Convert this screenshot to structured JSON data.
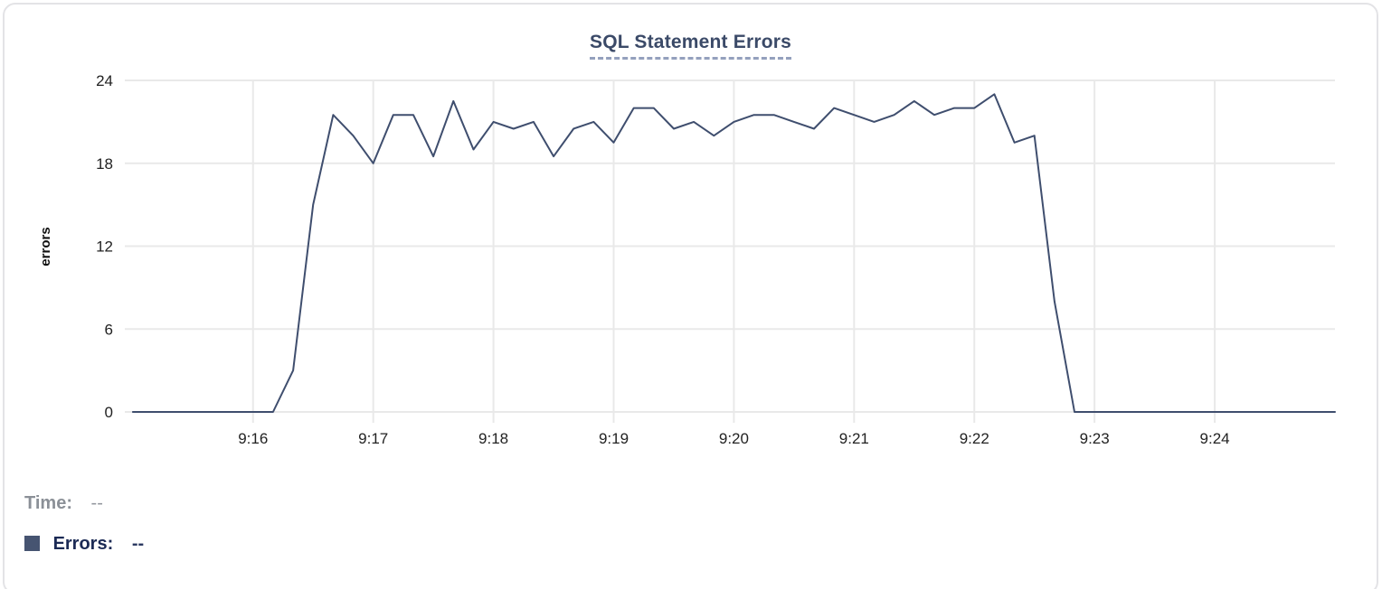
{
  "card": {
    "title": "SQL Statement Errors"
  },
  "legend": {
    "time_label": "Time:",
    "time_value": "--",
    "errors_label": "Errors:",
    "errors_value": "--",
    "swatch_color": "#465471"
  },
  "colors": {
    "line": "#3f4e6e",
    "grid": "#e9e9e9",
    "title": "#3b4a68",
    "title_underline": "#94a0bd",
    "tick_text": "#222222",
    "axis_label": "#111111",
    "legend_time": "#8b9097",
    "legend_errors": "#1b2a55",
    "card_border": "#e3e3e6",
    "background": "#ffffff"
  },
  "chart_data": {
    "type": "line",
    "title": "SQL Statement Errors",
    "xlabel": "",
    "ylabel": "errors",
    "ylim": [
      0,
      24
    ],
    "y_ticks": [
      0,
      6,
      12,
      18,
      24
    ],
    "x_ticks": [
      "9:16",
      "9:17",
      "9:18",
      "9:19",
      "9:20",
      "9:21",
      "9:22",
      "9:23",
      "9:24"
    ],
    "x_range": [
      "9:14:56",
      "9:25:00"
    ],
    "sample_interval_seconds": 10,
    "grid": true,
    "legend_position": "bottom-left",
    "series": [
      {
        "name": "Errors",
        "color": "#3f4e6e",
        "times": [
          "9:15:00",
          "9:15:10",
          "9:15:20",
          "9:15:30",
          "9:15:40",
          "9:15:50",
          "9:16:00",
          "9:16:10",
          "9:16:20",
          "9:16:30",
          "9:16:40",
          "9:16:50",
          "9:17:00",
          "9:17:10",
          "9:17:20",
          "9:17:30",
          "9:17:40",
          "9:17:50",
          "9:18:00",
          "9:18:10",
          "9:18:20",
          "9:18:30",
          "9:18:40",
          "9:18:50",
          "9:19:00",
          "9:19:10",
          "9:19:20",
          "9:19:30",
          "9:19:40",
          "9:19:50",
          "9:20:00",
          "9:20:10",
          "9:20:20",
          "9:20:30",
          "9:20:40",
          "9:20:50",
          "9:21:00",
          "9:21:10",
          "9:21:20",
          "9:21:30",
          "9:21:40",
          "9:21:50",
          "9:22:00",
          "9:22:10",
          "9:22:20",
          "9:22:30",
          "9:22:40",
          "9:22:50",
          "9:23:00",
          "9:23:10",
          "9:23:20",
          "9:23:30",
          "9:23:40",
          "9:23:50",
          "9:24:00",
          "9:24:10",
          "9:24:20",
          "9:24:30",
          "9:24:40",
          "9:24:50",
          "9:25:00"
        ],
        "values": [
          0,
          0,
          0,
          0,
          0,
          0,
          0,
          0,
          3,
          15,
          21.5,
          20,
          18,
          21.5,
          21.5,
          18.5,
          22.5,
          19,
          21,
          20.5,
          21,
          18.5,
          20.5,
          21,
          19.5,
          22,
          22,
          20.5,
          21,
          20,
          21,
          21.5,
          21.5,
          21,
          20.5,
          22,
          21.5,
          21,
          21.5,
          22.5,
          21.5,
          22,
          22,
          23,
          19.5,
          20,
          8,
          0,
          0,
          0,
          0,
          0,
          0,
          0,
          0,
          0,
          0,
          0,
          0,
          0,
          0
        ]
      }
    ]
  }
}
